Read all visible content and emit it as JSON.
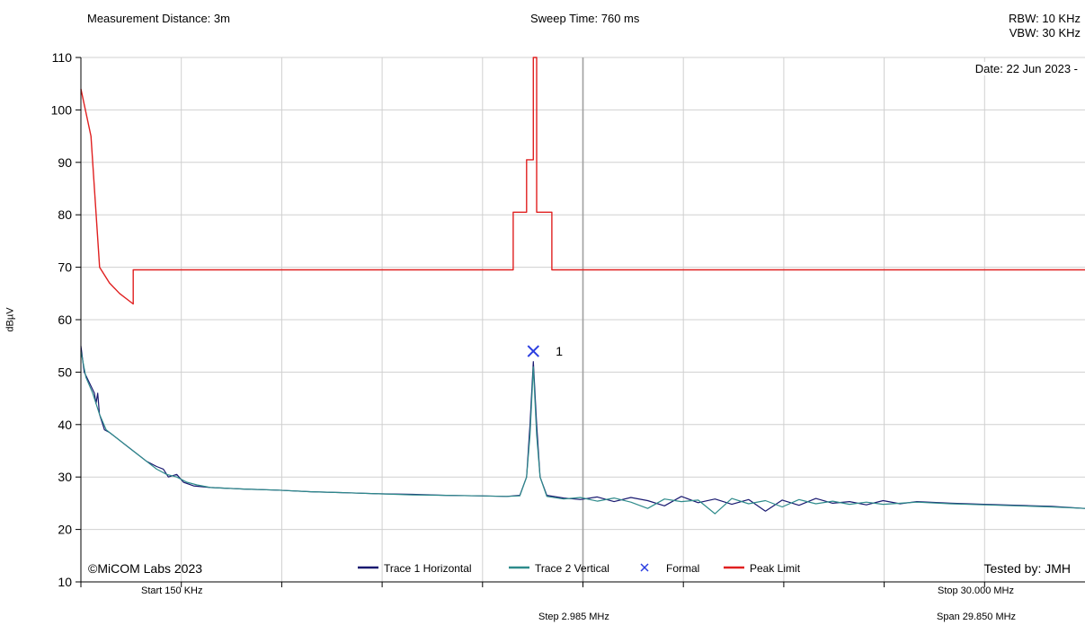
{
  "header": {
    "measurement_distance": "Measurement Distance: 3m",
    "sweep_time": "Sweep Time: 760 ms",
    "rbw": "RBW: 10 KHz",
    "vbw": "VBW: 30 KHz",
    "date": "Date: 22 Jun 2023 -"
  },
  "footer": {
    "copyright": "©MiCOM Labs 2023",
    "tested_by": "Tested by: JMH",
    "start": "Start 150 KHz",
    "stop": "Stop 30.000 MHz",
    "step": "Step 2.985 MHz",
    "span": "Span 29.850 MHz"
  },
  "colors": {
    "trace1": "#191970",
    "trace2": "#2e8b8b",
    "marker": "#2a3de0",
    "limit": "#e02020",
    "grid": "#d0d0d0",
    "center_line": "#a0a0a0"
  },
  "chart_data": {
    "type": "line",
    "xlabel": "",
    "ylabel": "dBµV",
    "xlim": [
      0.15,
      30.0
    ],
    "ylim": [
      10,
      110
    ],
    "y_ticks": [
      10,
      20,
      30,
      40,
      50,
      60,
      70,
      80,
      90,
      100,
      110
    ],
    "grid": true,
    "legend_position": "bottom",
    "legend": [
      {
        "label": "Trace 1 Horizontal",
        "symbol": "line",
        "color_key": "trace1"
      },
      {
        "label": "Trace 2 Vertical",
        "symbol": "line",
        "color_key": "trace2"
      },
      {
        "label": "Formal",
        "symbol": "x",
        "color_key": "marker"
      },
      {
        "label": "Peak Limit",
        "symbol": "line",
        "color_key": "limit"
      }
    ],
    "series": [
      {
        "name": "Peak Limit",
        "color_key": "limit",
        "points": [
          [
            0.15,
            104
          ],
          [
            0.45,
            95
          ],
          [
            0.705,
            70
          ],
          [
            1.0,
            67
          ],
          [
            1.3,
            65
          ],
          [
            1.705,
            63
          ],
          [
            1.705,
            69.5
          ],
          [
            13.0,
            69.5
          ],
          [
            13.0,
            80.5
          ],
          [
            13.4,
            80.5
          ],
          [
            13.4,
            90.5
          ],
          [
            13.6,
            90.5
          ],
          [
            13.6,
            110
          ],
          [
            13.7,
            110
          ],
          [
            13.7,
            80.5
          ],
          [
            14.15,
            80.5
          ],
          [
            14.15,
            69.5
          ],
          [
            30.0,
            69.5
          ]
        ]
      },
      {
        "name": "Trace 1 Horizontal",
        "color_key": "trace1",
        "points": [
          [
            0.15,
            55
          ],
          [
            0.25,
            50
          ],
          [
            0.4,
            48
          ],
          [
            0.55,
            46
          ],
          [
            0.6,
            44
          ],
          [
            0.65,
            46
          ],
          [
            0.7,
            42
          ],
          [
            0.85,
            39
          ],
          [
            1.0,
            38.5
          ],
          [
            1.3,
            37
          ],
          [
            1.6,
            35.5
          ],
          [
            1.9,
            34
          ],
          [
            2.1,
            33
          ],
          [
            2.4,
            32
          ],
          [
            2.6,
            31.5
          ],
          [
            2.75,
            30
          ],
          [
            3.0,
            30.5
          ],
          [
            3.2,
            29
          ],
          [
            3.5,
            28.3
          ],
          [
            4.0,
            28
          ],
          [
            5.0,
            27.7
          ],
          [
            6.0,
            27.5
          ],
          [
            7.0,
            27.2
          ],
          [
            8.0,
            27
          ],
          [
            9.0,
            26.8
          ],
          [
            10.0,
            26.7
          ],
          [
            11.0,
            26.5
          ],
          [
            12.0,
            26.4
          ],
          [
            12.8,
            26.3
          ],
          [
            13.2,
            26.5
          ],
          [
            13.4,
            30
          ],
          [
            13.5,
            40
          ],
          [
            13.6,
            52
          ],
          [
            13.7,
            40
          ],
          [
            13.8,
            30
          ],
          [
            14.0,
            26.5
          ],
          [
            14.5,
            26
          ],
          [
            15.0,
            25.7
          ],
          [
            15.5,
            26.2
          ],
          [
            16.0,
            25.3
          ],
          [
            16.5,
            26.1
          ],
          [
            17.0,
            25.5
          ],
          [
            17.5,
            24.5
          ],
          [
            18.0,
            26.3
          ],
          [
            18.5,
            25.1
          ],
          [
            19.0,
            25.8
          ],
          [
            19.5,
            24.8
          ],
          [
            20.0,
            25.7
          ],
          [
            20.5,
            23.5
          ],
          [
            21.0,
            25.6
          ],
          [
            21.5,
            24.6
          ],
          [
            22.0,
            25.9
          ],
          [
            22.5,
            25
          ],
          [
            23.0,
            25.3
          ],
          [
            23.5,
            24.7
          ],
          [
            24.0,
            25.5
          ],
          [
            24.5,
            24.9
          ],
          [
            25.0,
            25.3
          ],
          [
            26.0,
            25
          ],
          [
            27.0,
            24.8
          ],
          [
            28.0,
            24.6
          ],
          [
            29.0,
            24.4
          ],
          [
            30.0,
            24
          ]
        ]
      },
      {
        "name": "Trace 2 Vertical",
        "color_key": "trace2",
        "points": [
          [
            0.15,
            54
          ],
          [
            0.3,
            49
          ],
          [
            0.5,
            46
          ],
          [
            0.7,
            42
          ],
          [
            0.9,
            39
          ],
          [
            1.2,
            37.5
          ],
          [
            1.5,
            36
          ],
          [
            1.8,
            34.5
          ],
          [
            2.1,
            33
          ],
          [
            2.4,
            31.5
          ],
          [
            2.7,
            30.5
          ],
          [
            3.0,
            30
          ],
          [
            3.3,
            29
          ],
          [
            3.6,
            28.5
          ],
          [
            4.0,
            28
          ],
          [
            5.0,
            27.7
          ],
          [
            6.0,
            27.5
          ],
          [
            7.0,
            27.2
          ],
          [
            8.0,
            27
          ],
          [
            9.0,
            26.8
          ],
          [
            10.0,
            26.6
          ],
          [
            11.0,
            26.5
          ],
          [
            12.0,
            26.4
          ],
          [
            12.8,
            26.3
          ],
          [
            13.2,
            26.4
          ],
          [
            13.4,
            30
          ],
          [
            13.5,
            38
          ],
          [
            13.6,
            51
          ],
          [
            13.7,
            38
          ],
          [
            13.8,
            30
          ],
          [
            14.0,
            26.3
          ],
          [
            14.5,
            25.8
          ],
          [
            15.0,
            26.1
          ],
          [
            15.5,
            25.4
          ],
          [
            16.0,
            26
          ],
          [
            16.5,
            25.2
          ],
          [
            17.0,
            24
          ],
          [
            17.5,
            25.8
          ],
          [
            18.0,
            25.3
          ],
          [
            18.5,
            25.6
          ],
          [
            19.0,
            23
          ],
          [
            19.5,
            25.9
          ],
          [
            20.0,
            24.9
          ],
          [
            20.5,
            25.5
          ],
          [
            21.0,
            24.3
          ],
          [
            21.5,
            25.7
          ],
          [
            22.0,
            24.9
          ],
          [
            22.5,
            25.4
          ],
          [
            23.0,
            24.8
          ],
          [
            23.5,
            25.2
          ],
          [
            24.0,
            24.8
          ],
          [
            25.0,
            25.2
          ],
          [
            26.0,
            24.9
          ],
          [
            27.0,
            24.7
          ],
          [
            28.0,
            24.5
          ],
          [
            29.0,
            24.3
          ],
          [
            30.0,
            24
          ]
        ]
      }
    ],
    "markers": [
      {
        "label": "1",
        "x": 13.6,
        "y": 54,
        "color_key": "marker"
      }
    ]
  }
}
